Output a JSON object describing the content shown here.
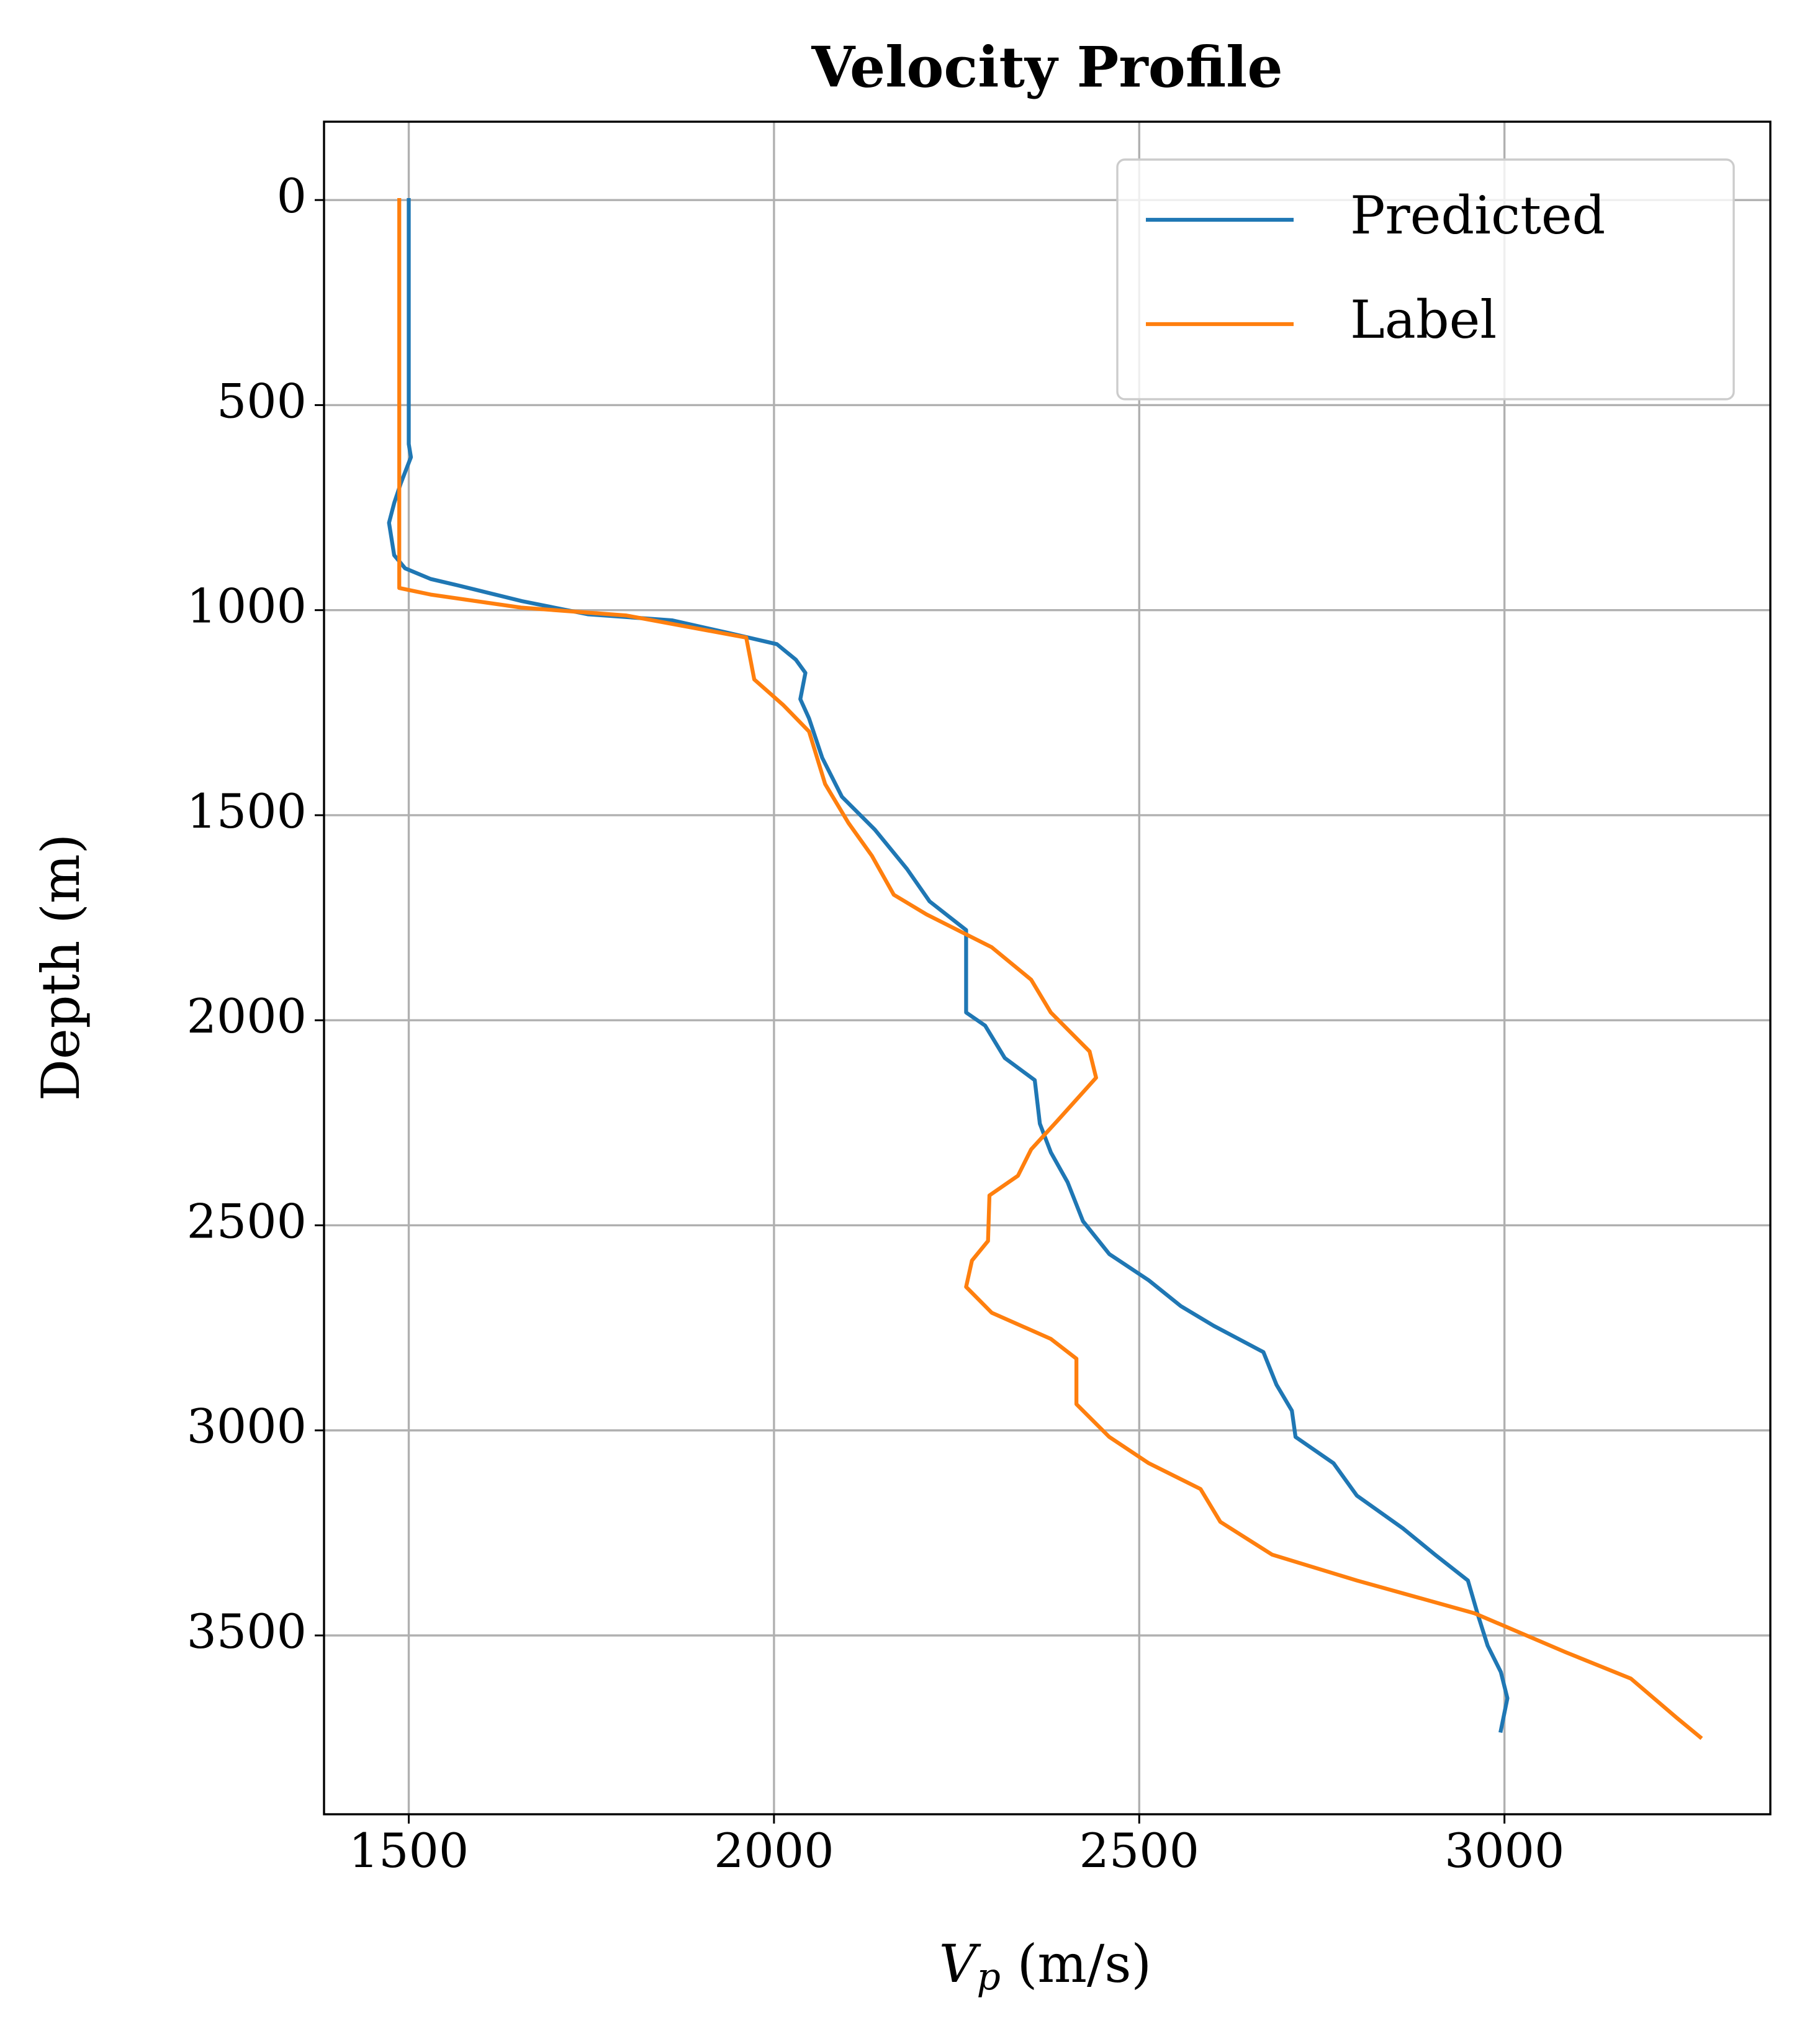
{
  "chart_data": {
    "type": "line",
    "title": "Velocity Profile",
    "xlabel": [
      "V",
      "p",
      " (m/s)"
    ],
    "ylabel": "Depth (m)",
    "xlim": [
      1384,
      3364
    ],
    "ylim": [
      -191,
      3936
    ],
    "invert_y": true,
    "xticks": [
      1500,
      2000,
      2500,
      3000
    ],
    "yticks": [
      0,
      500,
      1000,
      1500,
      2000,
      2500,
      3000,
      3500
    ],
    "grid": true,
    "legend": "upper right",
    "series": [
      {
        "name": "Predicted",
        "color": "#1f77b4",
        "x": [
          1500,
          1500,
          1503,
          1489,
          1480,
          1473,
          1480,
          1495,
          1530,
          1566,
          1655,
          1745,
          1861,
          1941,
          2004,
          2030,
          2043,
          2036,
          2048,
          2066,
          2093,
          2138,
          2182,
          2213,
          2263,
          2263,
          2263,
          2289,
          2316,
          2357,
          2364,
          2379,
          2402,
          2423,
          2459,
          2513,
          2557,
          2602,
          2670,
          2688,
          2709,
          2714,
          2766,
          2798,
          2861,
          2905,
          2950,
          2963,
          2977,
          2995,
          3004,
          2995
        ],
        "values": [
          0,
          595,
          627,
          691,
          739,
          787,
          866,
          898,
          924,
          939,
          978,
          1010,
          1025,
          1057,
          1083,
          1121,
          1153,
          1217,
          1264,
          1360,
          1455,
          1535,
          1631,
          1710,
          1780,
          1901,
          1981,
          2013,
          2092,
          2146,
          2252,
          2322,
          2395,
          2490,
          2570,
          2634,
          2697,
          2745,
          2809,
          2889,
          2952,
          3016,
          3080,
          3159,
          3239,
          3303,
          3366,
          3446,
          3525,
          3589,
          3653,
          3732
        ]
      },
      {
        "name": "Label",
        "color": "#ff7f0e",
        "x": [
          1487,
          1487,
          1530,
          1655,
          1798,
          1962,
          1973,
          2013,
          2048,
          2070,
          2102,
          2134,
          2164,
          2209,
          2298,
          2352,
          2379,
          2432,
          2441,
          2388,
          2352,
          2334,
          2295,
          2293,
          2271,
          2263,
          2298,
          2379,
          2414,
          2414,
          2459,
          2513,
          2584,
          2611,
          2682,
          2798,
          2959,
          3084,
          3173,
          3236,
          3268
        ],
        "values": [
          0,
          946,
          962,
          994,
          1013,
          1067,
          1169,
          1232,
          1296,
          1424,
          1519,
          1599,
          1694,
          1742,
          1822,
          1901,
          1981,
          2076,
          2140,
          2245,
          2315,
          2379,
          2427,
          2538,
          2586,
          2650,
          2713,
          2777,
          2825,
          2936,
          3016,
          3080,
          3143,
          3223,
          3303,
          3366,
          3446,
          3541,
          3605,
          3701,
          3748
        ]
      }
    ]
  }
}
